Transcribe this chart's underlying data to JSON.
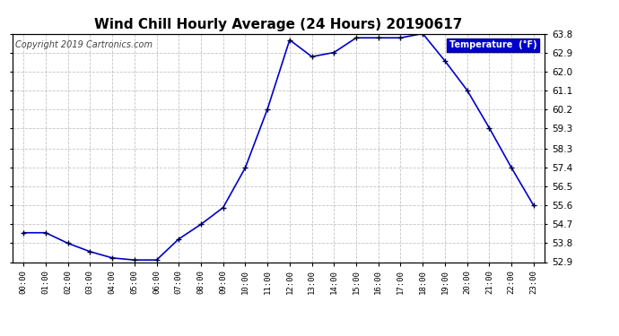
{
  "title": "Wind Chill Hourly Average (24 Hours) 20190617",
  "copyright_text": "Copyright 2019 Cartronics.com",
  "legend_label": "Temperature  (°F)",
  "hours": [
    "00:00",
    "01:00",
    "02:00",
    "03:00",
    "04:00",
    "05:00",
    "06:00",
    "07:00",
    "08:00",
    "09:00",
    "10:00",
    "11:00",
    "12:00",
    "13:00",
    "14:00",
    "15:00",
    "16:00",
    "17:00",
    "18:00",
    "19:00",
    "20:00",
    "21:00",
    "22:00",
    "23:00"
  ],
  "values": [
    54.3,
    54.3,
    53.8,
    53.4,
    53.1,
    53.0,
    53.0,
    54.0,
    54.7,
    55.5,
    57.4,
    60.2,
    63.5,
    62.7,
    62.9,
    63.6,
    63.6,
    63.6,
    63.8,
    62.5,
    61.1,
    59.3,
    57.4,
    55.6
  ],
  "ylim_min": 52.9,
  "ylim_max": 63.8,
  "yticks": [
    52.9,
    53.8,
    54.7,
    55.6,
    56.5,
    57.4,
    58.3,
    59.3,
    60.2,
    61.1,
    62.0,
    62.9,
    63.8
  ],
  "line_color": "#0000cc",
  "marker_color": "#000000",
  "bg_color": "#ffffff",
  "plot_bg_color": "#ffffff",
  "grid_color": "#aaaaaa",
  "title_fontsize": 11,
  "copyright_fontsize": 7,
  "legend_bg_color": "#0000cc",
  "legend_text_color": "#ffffff"
}
